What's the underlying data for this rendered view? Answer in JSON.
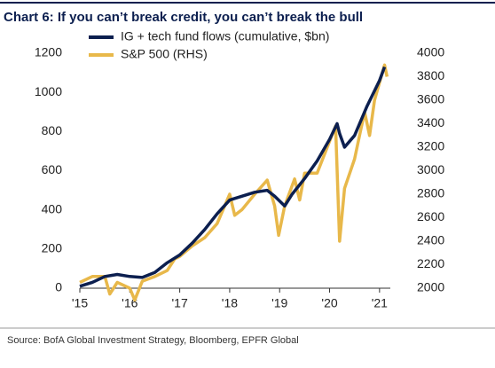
{
  "chart_data": {
    "type": "line",
    "title": "Chart 6: If you can’t break credit, you can’t break the bull",
    "source": "Source:  BofA Global Investment Strategy, Bloomberg, EPFR Global",
    "xlim": [
      2015,
      2021.5
    ],
    "xticks": [
      {
        "value": 2015,
        "label": "'15"
      },
      {
        "value": 2016,
        "label": "'16"
      },
      {
        "value": 2017,
        "label": "'17"
      },
      {
        "value": 2018,
        "label": "'18"
      },
      {
        "value": 2019,
        "label": "'19"
      },
      {
        "value": 2020,
        "label": "'20"
      },
      {
        "value": 2021,
        "label": "'21"
      }
    ],
    "ylim": [
      0,
      1200
    ],
    "yticks": [
      0,
      200,
      400,
      600,
      800,
      1000,
      1200
    ],
    "y2lim": [
      2000,
      4000
    ],
    "y2ticks": [
      2000,
      2200,
      2400,
      2600,
      2800,
      3000,
      3200,
      3400,
      3600,
      3800,
      4000
    ],
    "legend": "top-left",
    "series": [
      {
        "name": "IG + tech fund flows (cumulative, $bn)",
        "color": "#0c1f4f",
        "x": [
          2015,
          2015.25,
          2015.5,
          2015.75,
          2016,
          2016.25,
          2016.5,
          2016.75,
          2017,
          2017.25,
          2017.5,
          2017.75,
          2018,
          2018.25,
          2018.5,
          2018.75,
          2018.9,
          2019.1,
          2019.25,
          2019.5,
          2019.75,
          2020,
          2020.15,
          2020.2,
          2020.3,
          2020.5,
          2020.75,
          2021,
          2021.1
        ],
        "values": [
          10,
          30,
          60,
          70,
          60,
          55,
          80,
          130,
          170,
          230,
          300,
          380,
          450,
          470,
          490,
          500,
          470,
          420,
          480,
          560,
          650,
          760,
          840,
          790,
          720,
          780,
          930,
          1060,
          1130
        ]
      },
      {
        "name": "S&P 500 (RHS)",
        "color": "#e8b84a",
        "axis": "y2",
        "x": [
          2015,
          2015.25,
          2015.5,
          2015.6,
          2015.75,
          2016,
          2016.1,
          2016.25,
          2016.5,
          2016.75,
          2016.9,
          2017,
          2017.25,
          2017.5,
          2017.75,
          2018,
          2018.1,
          2018.25,
          2018.5,
          2018.75,
          2018.9,
          2018.98,
          2019.1,
          2019.3,
          2019.4,
          2019.5,
          2019.75,
          2020,
          2020.12,
          2020.2,
          2020.3,
          2020.5,
          2020.6,
          2020.7,
          2020.8,
          2020.9,
          2021,
          2021.1,
          2021.15
        ],
        "values": [
          2050,
          2100,
          2100,
          1950,
          2050,
          2000,
          1900,
          2060,
          2100,
          2150,
          2250,
          2270,
          2360,
          2430,
          2550,
          2800,
          2620,
          2670,
          2800,
          2920,
          2700,
          2450,
          2700,
          2930,
          2750,
          2980,
          2980,
          3250,
          3380,
          2400,
          2850,
          3100,
          3300,
          3500,
          3300,
          3600,
          3750,
          3900,
          3800
        ]
      }
    ]
  }
}
